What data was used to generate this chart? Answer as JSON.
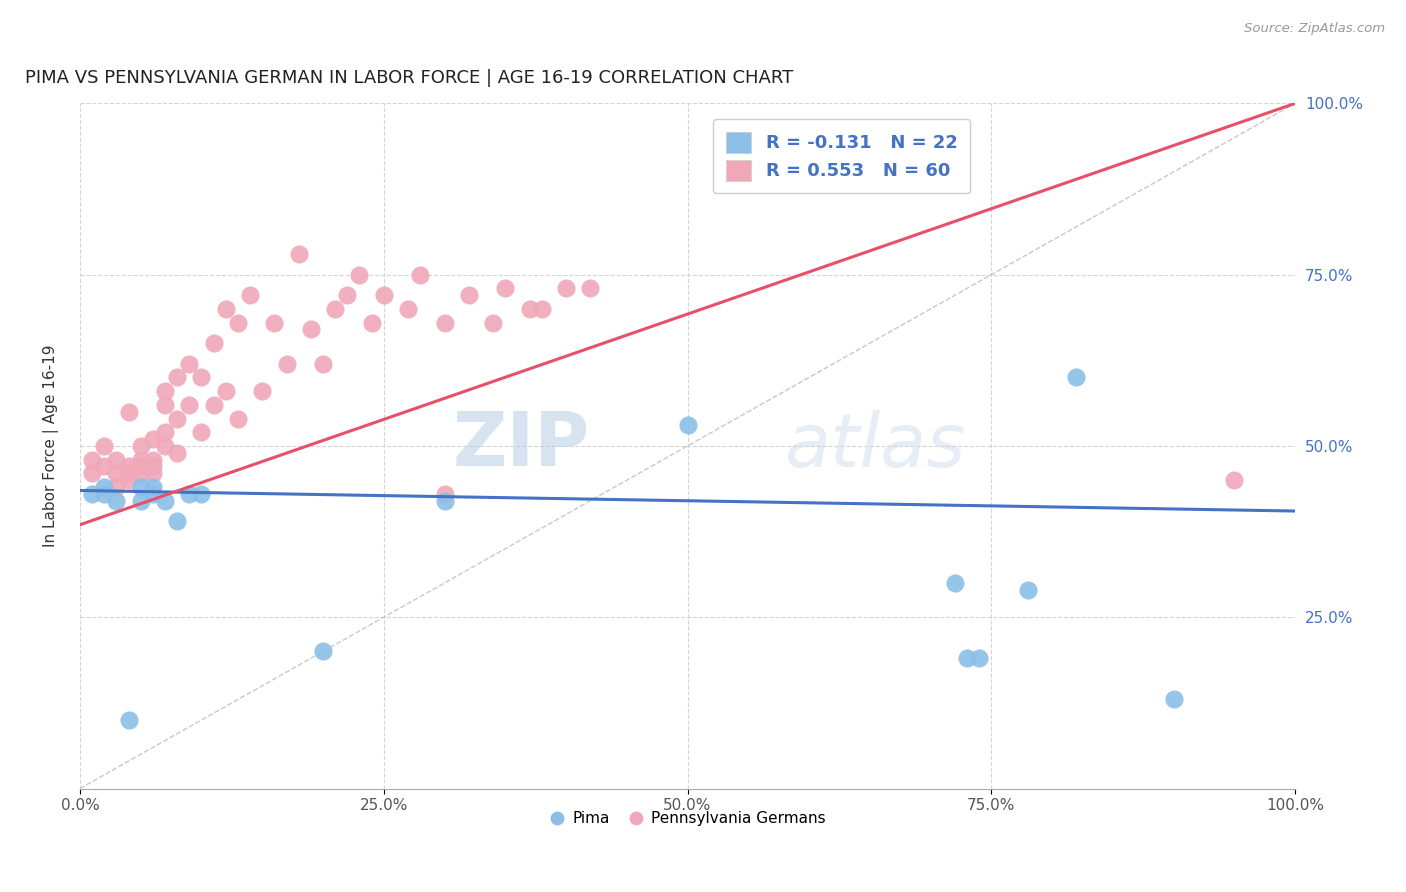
{
  "title": "PIMA VS PENNSYLVANIA GERMAN IN LABOR FORCE | AGE 16-19 CORRELATION CHART",
  "source_text": "Source: ZipAtlas.com",
  "ylabel": "In Labor Force | Age 16-19",
  "xlim": [
    0,
    1.0
  ],
  "ylim": [
    0,
    1.0
  ],
  "xtick_labels": [
    "0.0%",
    "25.0%",
    "50.0%",
    "75.0%",
    "100.0%"
  ],
  "xtick_values": [
    0,
    0.25,
    0.5,
    0.75,
    1.0
  ],
  "ytick_labels": [
    "25.0%",
    "50.0%",
    "75.0%",
    "100.0%"
  ],
  "ytick_values": [
    0.25,
    0.5,
    0.75,
    1.0
  ],
  "pima_R": -0.131,
  "pima_N": 22,
  "pg_R": 0.553,
  "pg_N": 60,
  "pima_color": "#8BBFE8",
  "pg_color": "#F0A8B8",
  "pima_line_color": "#4472C4",
  "pg_line_color": "#E8506A",
  "ref_line_color": "#BBBBBB",
  "grid_color": "#D5D5D5",
  "watermark_zip": "ZIP",
  "watermark_atlas": "atlas",
  "pima_x": [
    0.01,
    0.02,
    0.02,
    0.03,
    0.04,
    0.05,
    0.05,
    0.06,
    0.06,
    0.07,
    0.08,
    0.09,
    0.1,
    0.2,
    0.3,
    0.5,
    0.72,
    0.73,
    0.74,
    0.78,
    0.82,
    0.9
  ],
  "pima_y": [
    0.43,
    0.44,
    0.43,
    0.42,
    0.1,
    0.44,
    0.42,
    0.44,
    0.43,
    0.42,
    0.39,
    0.43,
    0.43,
    0.2,
    0.42,
    0.53,
    0.3,
    0.19,
    0.19,
    0.29,
    0.6,
    0.13
  ],
  "pg_x": [
    0.01,
    0.01,
    0.02,
    0.02,
    0.03,
    0.03,
    0.03,
    0.04,
    0.04,
    0.04,
    0.04,
    0.05,
    0.05,
    0.05,
    0.05,
    0.06,
    0.06,
    0.06,
    0.06,
    0.07,
    0.07,
    0.07,
    0.07,
    0.08,
    0.08,
    0.08,
    0.09,
    0.09,
    0.1,
    0.1,
    0.11,
    0.11,
    0.12,
    0.12,
    0.13,
    0.13,
    0.14,
    0.15,
    0.16,
    0.17,
    0.18,
    0.19,
    0.2,
    0.21,
    0.22,
    0.23,
    0.24,
    0.25,
    0.27,
    0.28,
    0.3,
    0.32,
    0.34,
    0.35,
    0.37,
    0.38,
    0.4,
    0.42,
    0.3,
    0.95
  ],
  "pg_y": [
    0.46,
    0.48,
    0.47,
    0.5,
    0.44,
    0.46,
    0.48,
    0.45,
    0.47,
    0.46,
    0.55,
    0.46,
    0.48,
    0.47,
    0.5,
    0.46,
    0.47,
    0.48,
    0.51,
    0.5,
    0.52,
    0.56,
    0.58,
    0.49,
    0.54,
    0.6,
    0.56,
    0.62,
    0.52,
    0.6,
    0.56,
    0.65,
    0.58,
    0.7,
    0.54,
    0.68,
    0.72,
    0.58,
    0.68,
    0.62,
    0.78,
    0.67,
    0.62,
    0.7,
    0.72,
    0.75,
    0.68,
    0.72,
    0.7,
    0.75,
    0.68,
    0.72,
    0.68,
    0.73,
    0.7,
    0.7,
    0.73,
    0.73,
    0.43,
    0.45
  ],
  "pg_trend_x0": 0.0,
  "pg_trend_y0": 0.385,
  "pg_trend_x1": 1.0,
  "pg_trend_y1": 1.0,
  "pima_trend_x0": 0.0,
  "pima_trend_y0": 0.435,
  "pima_trend_x1": 1.0,
  "pima_trend_y1": 0.405
}
